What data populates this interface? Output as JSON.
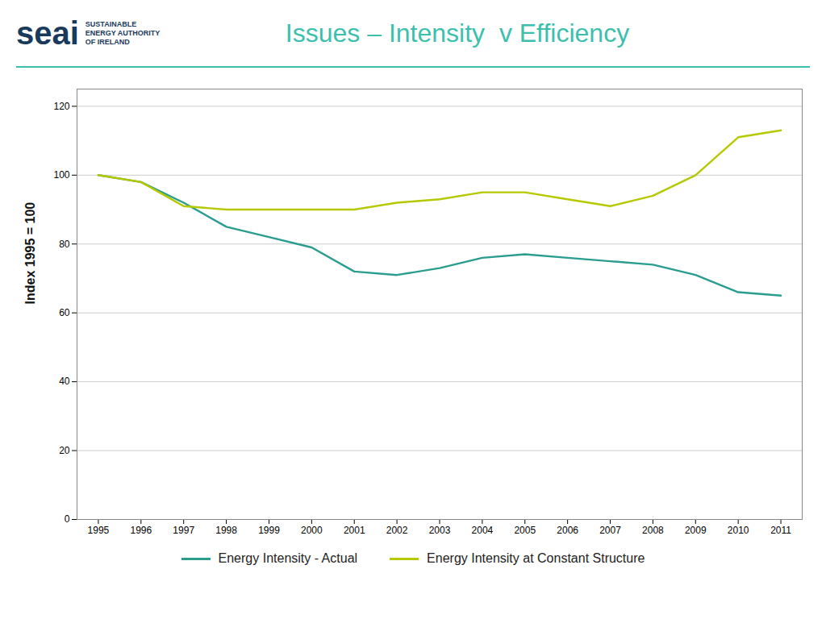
{
  "chart_data": {
    "type": "line",
    "title": "Issues – Intensity  v Efficiency",
    "ylabel": "Index 1995 = 100",
    "x": [
      1995,
      1996,
      1997,
      1998,
      1999,
      2000,
      2001,
      2002,
      2003,
      2004,
      2005,
      2006,
      2007,
      2008,
      2009,
      2010,
      2011
    ],
    "series": [
      {
        "name": "Energy Intensity - Actual",
        "color": "#2a9d8f",
        "values": [
          100,
          98,
          92,
          85,
          82,
          79,
          72,
          71,
          73,
          76,
          77,
          76,
          75,
          74,
          71,
          66,
          65
        ]
      },
      {
        "name": "Energy Intensity at Constant Structure",
        "color": "#b5c800",
        "values": [
          100,
          98,
          91,
          90,
          90,
          90,
          90,
          92,
          93,
          95,
          95,
          93,
          91,
          94,
          100,
          111,
          113
        ]
      }
    ],
    "xlim": [
      1994.5,
      2011.5
    ],
    "xticks": [
      1995,
      1996,
      1997,
      1998,
      1999,
      2000,
      2001,
      2002,
      2003,
      2004,
      2005,
      2006,
      2007,
      2008,
      2009,
      2010,
      2011
    ],
    "ylim": [
      0,
      125
    ],
    "yticks": [
      0,
      20,
      40,
      60,
      80,
      100,
      120
    ],
    "grid": true,
    "legend": "bottom",
    "annotations": [
      "seai",
      "SUSTAINABLE",
      "ENERGY AUTHORITY",
      "OF IRELAND"
    ]
  }
}
